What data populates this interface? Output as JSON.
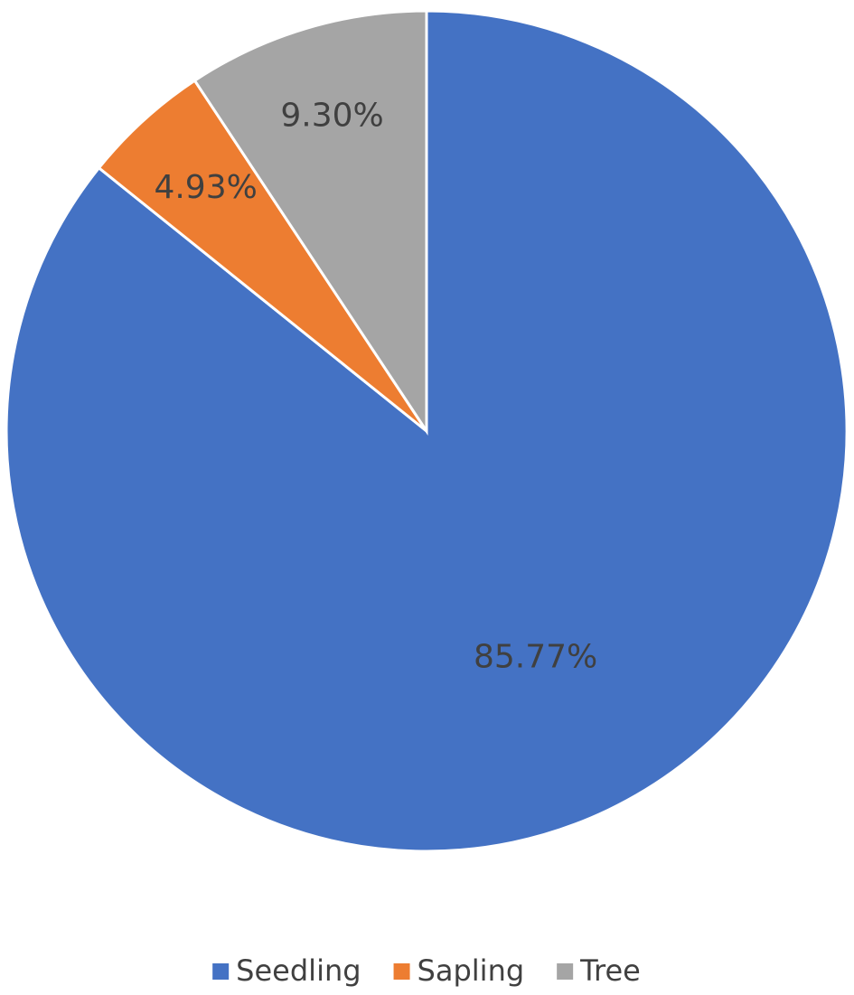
{
  "chart_data": {
    "type": "pie",
    "categories": [
      "Seedling",
      "Sapling",
      "Tree"
    ],
    "values": [
      85.77,
      4.93,
      9.3
    ],
    "value_labels": [
      "85.77%",
      "4.93%",
      "9.30%"
    ],
    "colors": [
      "#4472c4",
      "#ed7d31",
      "#a5a5a5"
    ],
    "legend": "bottom"
  }
}
